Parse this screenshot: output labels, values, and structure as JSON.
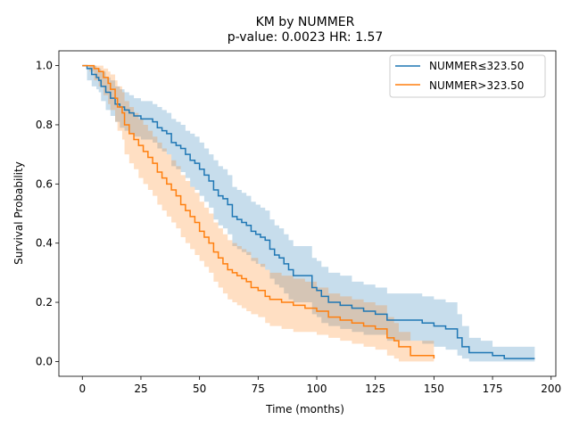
{
  "chart_data": {
    "type": "line",
    "title_line1": "KM by NUMMER",
    "title_line2": "p-value: 0.0023  HR: 1.57",
    "xlabel": "Time (months)",
    "ylabel": "Survival Probability",
    "xlim": [
      -10,
      202
    ],
    "ylim": [
      -0.05,
      1.05
    ],
    "xticks": [
      0,
      25,
      50,
      75,
      100,
      125,
      150,
      175,
      200
    ],
    "yticks": [
      0.0,
      0.2,
      0.4,
      0.6,
      0.8,
      1.0
    ],
    "xtick_labels": [
      "0",
      "25",
      "50",
      "75",
      "100",
      "125",
      "150",
      "175",
      "200"
    ],
    "ytick_labels": [
      "0.0",
      "0.2",
      "0.4",
      "0.6",
      "0.8",
      "1.0"
    ],
    "legend_position": "top-right",
    "grid": false,
    "series": [
      {
        "name": "NUMMER≤323.50",
        "color": "#1f77b4",
        "band_color": "#1f77b4",
        "x": [
          0,
          2,
          4,
          6,
          7,
          8,
          10,
          12,
          14,
          16,
          18,
          20,
          22,
          25,
          28,
          30,
          32,
          34,
          36,
          38,
          40,
          42,
          44,
          46,
          48,
          50,
          52,
          54,
          56,
          58,
          60,
          62,
          64,
          66,
          68,
          70,
          72,
          74,
          76,
          78,
          80,
          82,
          84,
          86,
          88,
          90,
          92,
          95,
          98,
          100,
          102,
          105,
          110,
          115,
          120,
          125,
          130,
          135,
          140,
          145,
          150,
          155,
          160,
          162,
          165,
          170,
          175,
          180,
          185,
          190,
          193
        ],
        "y": [
          1.0,
          0.99,
          0.97,
          0.96,
          0.95,
          0.93,
          0.91,
          0.89,
          0.87,
          0.86,
          0.85,
          0.84,
          0.83,
          0.82,
          0.82,
          0.81,
          0.79,
          0.78,
          0.77,
          0.74,
          0.73,
          0.72,
          0.7,
          0.68,
          0.67,
          0.65,
          0.63,
          0.61,
          0.58,
          0.56,
          0.55,
          0.53,
          0.49,
          0.48,
          0.47,
          0.46,
          0.44,
          0.43,
          0.42,
          0.41,
          0.38,
          0.36,
          0.35,
          0.33,
          0.31,
          0.29,
          0.29,
          0.29,
          0.25,
          0.24,
          0.22,
          0.2,
          0.19,
          0.18,
          0.17,
          0.16,
          0.14,
          0.14,
          0.14,
          0.13,
          0.12,
          0.11,
          0.08,
          0.05,
          0.03,
          0.03,
          0.02,
          0.01,
          0.01,
          0.01,
          0.01
        ],
        "upper": [
          1.0,
          1.0,
          1.0,
          0.99,
          0.99,
          0.98,
          0.96,
          0.95,
          0.93,
          0.92,
          0.91,
          0.9,
          0.89,
          0.88,
          0.88,
          0.87,
          0.86,
          0.85,
          0.84,
          0.82,
          0.81,
          0.8,
          0.78,
          0.77,
          0.76,
          0.74,
          0.72,
          0.7,
          0.68,
          0.66,
          0.65,
          0.63,
          0.59,
          0.58,
          0.57,
          0.56,
          0.54,
          0.53,
          0.52,
          0.51,
          0.48,
          0.46,
          0.45,
          0.43,
          0.41,
          0.39,
          0.39,
          0.39,
          0.35,
          0.34,
          0.32,
          0.3,
          0.29,
          0.27,
          0.26,
          0.25,
          0.23,
          0.23,
          0.23,
          0.22,
          0.21,
          0.2,
          0.16,
          0.12,
          0.08,
          0.07,
          0.05,
          0.05,
          0.05,
          0.05,
          0.05
        ],
        "lower": [
          1.0,
          0.95,
          0.93,
          0.92,
          0.91,
          0.88,
          0.85,
          0.83,
          0.81,
          0.79,
          0.78,
          0.77,
          0.76,
          0.75,
          0.75,
          0.74,
          0.72,
          0.71,
          0.7,
          0.66,
          0.65,
          0.64,
          0.62,
          0.59,
          0.58,
          0.56,
          0.54,
          0.52,
          0.48,
          0.46,
          0.45,
          0.43,
          0.39,
          0.38,
          0.37,
          0.36,
          0.34,
          0.33,
          0.32,
          0.31,
          0.28,
          0.26,
          0.25,
          0.23,
          0.21,
          0.2,
          0.2,
          0.2,
          0.16,
          0.15,
          0.13,
          0.12,
          0.11,
          0.1,
          0.09,
          0.09,
          0.07,
          0.07,
          0.07,
          0.06,
          0.05,
          0.04,
          0.02,
          0.01,
          0.0,
          0.0,
          0.0,
          0.0,
          0.0,
          0.0,
          0.0
        ]
      },
      {
        "name": "NUMMER>323.50",
        "color": "#ff7f0e",
        "band_color": "#ff7f0e",
        "x": [
          0,
          3,
          5,
          7,
          9,
          11,
          12,
          14,
          15,
          17,
          18,
          20,
          22,
          24,
          26,
          28,
          30,
          32,
          34,
          36,
          38,
          40,
          42,
          44,
          46,
          48,
          50,
          52,
          54,
          56,
          58,
          60,
          62,
          64,
          66,
          68,
          70,
          72,
          75,
          78,
          80,
          85,
          90,
          95,
          100,
          105,
          110,
          115,
          120,
          125,
          130,
          133,
          135,
          140,
          145,
          150
        ],
        "y": [
          1.0,
          1.0,
          0.99,
          0.98,
          0.96,
          0.94,
          0.92,
          0.89,
          0.86,
          0.84,
          0.8,
          0.77,
          0.75,
          0.73,
          0.71,
          0.69,
          0.67,
          0.64,
          0.62,
          0.6,
          0.58,
          0.56,
          0.53,
          0.51,
          0.49,
          0.47,
          0.44,
          0.42,
          0.4,
          0.37,
          0.35,
          0.33,
          0.31,
          0.3,
          0.29,
          0.28,
          0.27,
          0.25,
          0.24,
          0.22,
          0.21,
          0.2,
          0.19,
          0.18,
          0.17,
          0.15,
          0.14,
          0.13,
          0.12,
          0.11,
          0.08,
          0.07,
          0.05,
          0.02,
          0.02,
          0.01
        ],
        "upper": [
          1.0,
          1.0,
          1.0,
          1.0,
          0.99,
          0.98,
          0.97,
          0.95,
          0.93,
          0.91,
          0.88,
          0.86,
          0.84,
          0.82,
          0.8,
          0.78,
          0.76,
          0.74,
          0.72,
          0.7,
          0.68,
          0.66,
          0.63,
          0.61,
          0.59,
          0.57,
          0.54,
          0.52,
          0.5,
          0.47,
          0.45,
          0.43,
          0.41,
          0.4,
          0.39,
          0.38,
          0.37,
          0.35,
          0.33,
          0.31,
          0.3,
          0.29,
          0.28,
          0.27,
          0.25,
          0.23,
          0.22,
          0.21,
          0.2,
          0.19,
          0.15,
          0.13,
          0.1,
          0.07,
          0.07,
          0.06
        ],
        "lower": [
          1.0,
          0.98,
          0.95,
          0.93,
          0.9,
          0.87,
          0.85,
          0.81,
          0.78,
          0.75,
          0.7,
          0.67,
          0.65,
          0.62,
          0.6,
          0.58,
          0.56,
          0.53,
          0.51,
          0.49,
          0.47,
          0.45,
          0.42,
          0.4,
          0.38,
          0.36,
          0.34,
          0.32,
          0.3,
          0.27,
          0.25,
          0.23,
          0.21,
          0.2,
          0.19,
          0.18,
          0.17,
          0.16,
          0.15,
          0.13,
          0.12,
          0.11,
          0.1,
          0.1,
          0.09,
          0.08,
          0.07,
          0.06,
          0.05,
          0.04,
          0.02,
          0.01,
          0.0,
          0.0,
          0.0,
          0.0
        ]
      }
    ]
  }
}
